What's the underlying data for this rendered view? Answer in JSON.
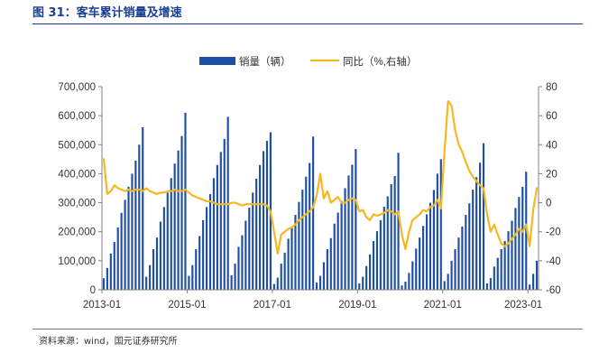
{
  "figure": {
    "title": "图 31：客车累计销量及增速",
    "source": "资料来源：wind，国元证券研究所"
  },
  "colors": {
    "bar": "#1f4fa3",
    "line": "#f5b820",
    "title": "#1b3f94",
    "axis": "#808080",
    "text": "#333333"
  },
  "chart_data": {
    "type": "bar+line",
    "title": "",
    "xlabel": "",
    "ylabel": "",
    "ylabel_right": "",
    "grid": false,
    "legend_position": "top",
    "frequency": "monthly",
    "start": "2013-01",
    "x_ticks": [
      "2013-01",
      "2015-01",
      "2017-01",
      "2019-01",
      "2021-01",
      "2023-01"
    ],
    "y_left": {
      "min": 0,
      "max": 700000,
      "step": 100000,
      "tick_labels": [
        "0",
        "100,000",
        "200,000",
        "300,000",
        "400,000",
        "500,000",
        "600,000",
        "700,000"
      ]
    },
    "y_right": {
      "min": -60,
      "max": 80,
      "step": 20,
      "tick_labels": [
        "-60",
        "-40",
        "-20",
        "0",
        "20",
        "40",
        "60",
        "80"
      ]
    },
    "series": [
      {
        "name": "销量（辆）",
        "type": "bar",
        "axis": "left",
        "values": [
          40000,
          75000,
          125000,
          165000,
          215000,
          265000,
          310000,
          355000,
          400000,
          445000,
          500000,
          560000,
          45000,
          85000,
          140000,
          180000,
          235000,
          285000,
          335000,
          385000,
          435000,
          480000,
          530000,
          610000,
          48000,
          85000,
          140000,
          185000,
          240000,
          285000,
          330000,
          385000,
          430000,
          475000,
          520000,
          596000,
          50000,
          90000,
          148000,
          188000,
          238000,
          283000,
          335000,
          383000,
          430000,
          478000,
          513000,
          543000,
          20000,
          42000,
          90000,
          128000,
          176000,
          216000,
          258000,
          303000,
          345000,
          390000,
          437000,
          528000,
          25000,
          48000,
          95000,
          140000,
          178000,
          228000,
          266000,
          306000,
          350000,
          394000,
          431000,
          485000,
          22000,
          45000,
          82000,
          122000,
          168000,
          202000,
          240000,
          286000,
          322000,
          364000,
          392000,
          472000,
          15000,
          28000,
          58000,
          98000,
          142000,
          180000,
          220000,
          260000,
          300000,
          344000,
          400000,
          450000,
          30000,
          55000,
          100000,
          140000,
          180000,
          218000,
          258000,
          298000,
          345000,
          388000,
          438000,
          505000,
          22000,
          40000,
          80000,
          110000,
          140000,
          168000,
          202000,
          238000,
          282000,
          320000,
          355000,
          407000,
          18000,
          55000,
          100000
        ]
      },
      {
        "name": "同比（%,右轴）",
        "type": "line",
        "axis": "right",
        "values": [
          30,
          6,
          8,
          12,
          10,
          9,
          8,
          9,
          8,
          9,
          9,
          8,
          10,
          8,
          7,
          6,
          7,
          7,
          8,
          8,
          9,
          8,
          8,
          9,
          7,
          5,
          4,
          3,
          2,
          1,
          1,
          0,
          -1,
          -1,
          -1,
          -1,
          0,
          0,
          -1,
          -2,
          -1,
          -1,
          -1,
          -1,
          -1,
          -1,
          -2,
          -6,
          -20,
          -35,
          -22,
          -20,
          -18,
          -17,
          -15,
          -12,
          -10,
          -8,
          -6,
          -3,
          5,
          20,
          3,
          8,
          0,
          2,
          4,
          0,
          0,
          2,
          3,
          2,
          -6,
          -5,
          -10,
          -12,
          -8,
          -9,
          -8,
          -7,
          -5,
          -6,
          -8,
          -6,
          -22,
          -32,
          -20,
          -12,
          -10,
          -8,
          -5,
          -6,
          -3,
          -2,
          2,
          -4,
          35,
          70,
          67,
          50,
          40,
          35,
          28,
          22,
          18,
          15,
          12,
          10,
          -8,
          -20,
          -15,
          -22,
          -28,
          -30,
          -28,
          -25,
          -22,
          -18,
          -20,
          -15,
          -30,
          -5,
          10
        ]
      }
    ]
  }
}
